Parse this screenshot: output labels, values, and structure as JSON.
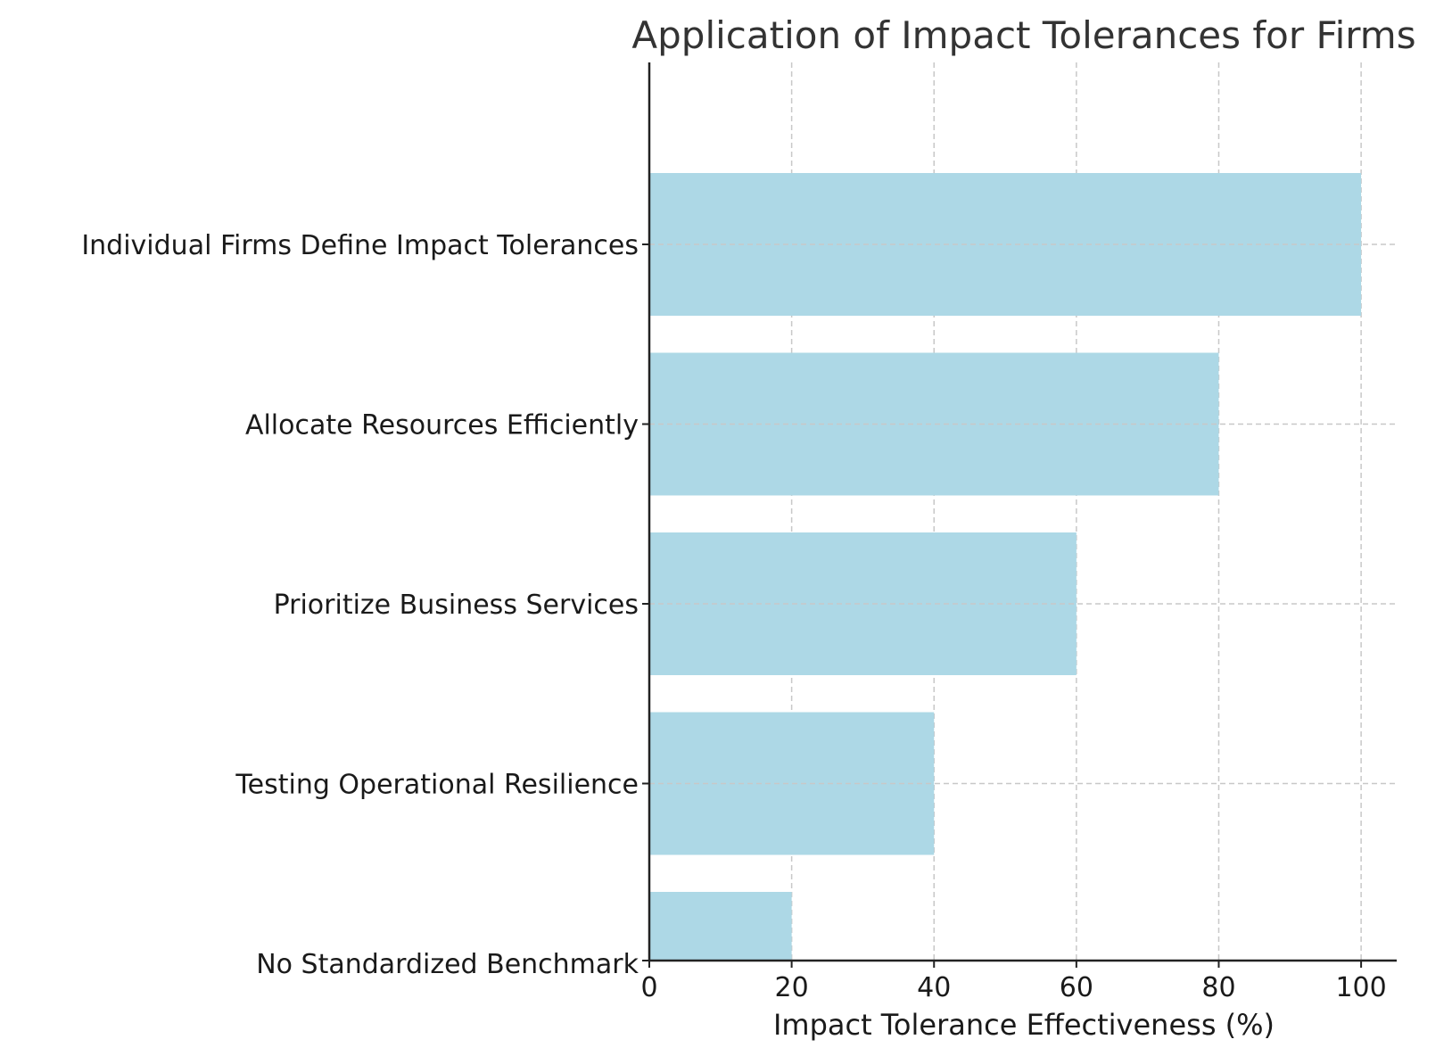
{
  "chart_data": {
    "type": "bar",
    "orientation": "horizontal",
    "title": "Application of Impact Tolerances for Firms",
    "xlabel": "Impact Tolerance Effectiveness (%)",
    "ylabel": "",
    "categories": [
      "No Standardized Benchmark",
      "Testing Operational Resilience",
      "Prioritize Business Services",
      "Allocate Resources Efficiently",
      "Individual Firms Define Impact Tolerances"
    ],
    "values": [
      20,
      40,
      60,
      80,
      100
    ],
    "xlim": [
      0,
      105
    ],
    "xticks": [
      0,
      20,
      40,
      60,
      80,
      100
    ],
    "grid": true,
    "colors": {
      "bar": "#add8e6",
      "grid": "#c8c8c8",
      "axis": "#222222",
      "title": "#333333",
      "text": "#1a1a1a"
    }
  }
}
